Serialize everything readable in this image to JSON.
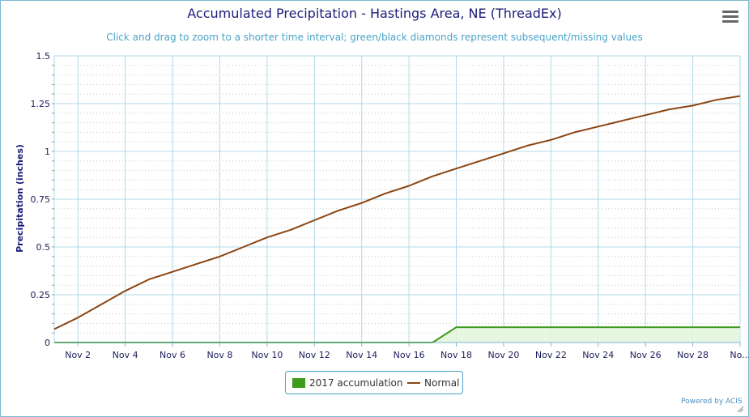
{
  "chart_data": {
    "type": "line",
    "title": "Accumulated Precipitation - Hastings Area, NE (ThreadEx)",
    "subtitle": "Click and drag to zoom to a shorter time interval; green/black diamonds represent subsequent/missing values",
    "xlabel": "",
    "ylabel": "Precipitation (inches)",
    "x": [
      "Nov 1",
      "Nov 2",
      "Nov 3",
      "Nov 4",
      "Nov 5",
      "Nov 6",
      "Nov 7",
      "Nov 8",
      "Nov 9",
      "Nov 10",
      "Nov 11",
      "Nov 12",
      "Nov 13",
      "Nov 14",
      "Nov 15",
      "Nov 16",
      "Nov 17",
      "Nov 18",
      "Nov 19",
      "Nov 20",
      "Nov 21",
      "Nov 22",
      "Nov 23",
      "Nov 24",
      "Nov 25",
      "Nov 26",
      "Nov 27",
      "Nov 28",
      "Nov 29",
      "Nov 30"
    ],
    "x_tick_labels": [
      "Nov 2",
      "Nov 4",
      "Nov 6",
      "Nov 8",
      "Nov 10",
      "Nov 12",
      "Nov 14",
      "Nov 16",
      "Nov 18",
      "Nov 20",
      "Nov 22",
      "Nov 24",
      "Nov 26",
      "Nov 28",
      "No..."
    ],
    "ylim": [
      0,
      1.5
    ],
    "y_ticks": [
      "0",
      "0.25",
      "0.5",
      "0.75",
      "1",
      "1.25",
      "1.5"
    ],
    "grid": true,
    "legend_position": "bottom-center",
    "series": [
      {
        "name": "2017 accumulation",
        "kind": "area",
        "color": "#3e9b1c",
        "values": [
          0,
          0,
          0,
          0,
          0,
          0,
          0,
          0,
          0,
          0,
          0,
          0,
          0,
          0,
          0,
          0,
          0,
          0.08,
          0.08,
          0.08,
          0.08,
          0.08,
          0.08,
          0.08,
          0.08,
          0.08,
          0.08,
          0.08,
          0.08,
          0.08
        ]
      },
      {
        "name": "Normal",
        "kind": "line",
        "color": "#8b4513",
        "values": [
          0.07,
          0.13,
          0.2,
          0.27,
          0.33,
          0.37,
          0.41,
          0.45,
          0.5,
          0.55,
          0.59,
          0.64,
          0.69,
          0.73,
          0.78,
          0.82,
          0.87,
          0.91,
          0.95,
          0.99,
          1.03,
          1.06,
          1.1,
          1.13,
          1.16,
          1.19,
          1.22,
          1.24,
          1.27,
          1.29
        ]
      }
    ]
  },
  "legend": {
    "item0": "2017 accumulation",
    "item1": "Normal"
  },
  "credits": "Powered by ACIS",
  "icons": {
    "menu": "hamburger-menu-icon"
  }
}
